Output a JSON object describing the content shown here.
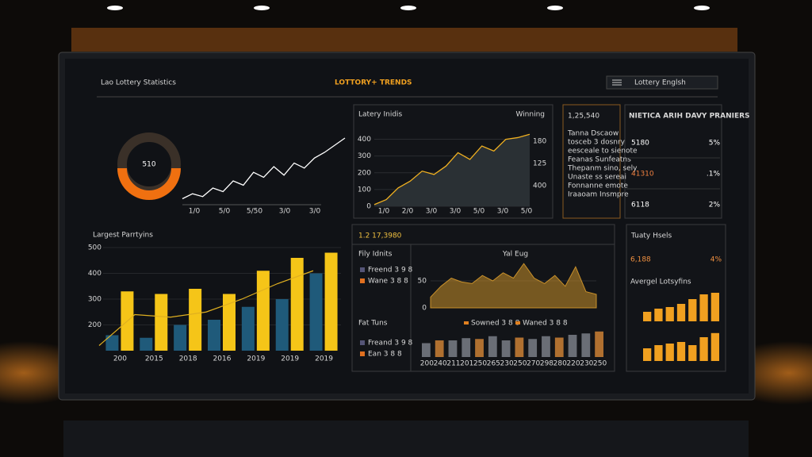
{
  "header": {
    "title": "Lao Lottery Statistics",
    "center_title": "LOTTORY+ TRENDS",
    "search": "Lottery Englsh"
  },
  "gauge": {
    "value": "510"
  },
  "sparkline": {
    "ylim": [
      0,
      100
    ],
    "values": [
      5,
      12,
      8,
      20,
      15,
      30,
      24,
      42,
      35,
      50,
      38,
      55,
      48,
      62,
      70,
      80,
      90
    ],
    "x_labels": [
      "1/0",
      "5/0",
      "5/50",
      "3/0",
      "3/0"
    ]
  },
  "trends": {
    "title": "Latery Inidis",
    "right_label": "Winning",
    "ylim": [
      0,
      450
    ],
    "yticks": [
      0,
      100,
      200,
      300,
      400
    ],
    "values": [
      10,
      40,
      110,
      150,
      210,
      190,
      240,
      320,
      280,
      360,
      330,
      400,
      410,
      430
    ],
    "x_labels": [
      "1/0",
      "2/0",
      "3/0",
      "3/0",
      "5/0",
      "3/0",
      "5/0"
    ],
    "y2_labels": [
      "180",
      "125",
      "400"
    ]
  },
  "stats_card": {
    "value": "1,25,540",
    "lines": [
      "Tanna Dscaow",
      "tosceb 3 dosnry",
      "eesceale to sienote",
      "Feanas Sunfeatns",
      "Thepanm sino, sely",
      "Unaste ss sereai",
      "Fonnanne emote",
      "Iraaoam Insmpre"
    ]
  },
  "big_numbers": {
    "title": "NIETICA ARIH DAVY PRANIERS",
    "rows": [
      [
        "5180",
        "5%"
      ],
      [
        "41310",
        ".1%"
      ],
      [
        "6118",
        "2%"
      ]
    ]
  },
  "largest": {
    "title": "Largest Parrtyins",
    "ylim": [
      100,
      500
    ],
    "yticks": [
      200,
      300,
      400,
      500
    ],
    "categories": [
      "200",
      "2015",
      "2018",
      "2016",
      "2019",
      "2019",
      "2019"
    ],
    "series": [
      {
        "color": "#1f5a7a",
        "values": [
          160,
          150,
          200,
          220,
          270,
          300,
          400
        ]
      },
      {
        "color": "#f5c518",
        "values": [
          330,
          320,
          340,
          320,
          410,
          460,
          480
        ]
      }
    ],
    "line": {
      "color": "#e0b020",
      "values": [
        120,
        240,
        230,
        250,
        300,
        360,
        410
      ]
    }
  },
  "middle": {
    "header": "1.2 17,3980",
    "legend_a": {
      "title": "Fily Idnits",
      "items": [
        "Freend 3 9 8",
        "Wane 3 8 8"
      ]
    },
    "legend_b": {
      "title": "Fat Tuns",
      "items": [
        "Freand 3 9 8",
        "Ean 3 8 8"
      ]
    },
    "area": {
      "title": "Yal Eug",
      "ylim": [
        0,
        100
      ],
      "yticks": [
        0,
        50
      ],
      "color": "#c8902a",
      "values": [
        20,
        40,
        55,
        48,
        45,
        60,
        50,
        65,
        55,
        82,
        55,
        45,
        60,
        40,
        76,
        30,
        25
      ],
      "legend": [
        "Sowned 3 8 8",
        "Waned 3 8 8"
      ]
    },
    "bars": {
      "ylim": [
        0,
        100
      ],
      "values": [
        50,
        60,
        60,
        68,
        65,
        75,
        60,
        70,
        65,
        75,
        70,
        80,
        85,
        92
      ],
      "x_labels": [
        "200",
        "240",
        "211",
        "201",
        "250",
        "265",
        "230",
        "250",
        "270",
        "298",
        "280",
        "220",
        "230",
        "250"
      ]
    }
  },
  "right": {
    "title": "Tuaty Hsels",
    "value": "6,188",
    "percent": "4%",
    "subtitle": "Avergel Lotsyfins",
    "ylim": [
      0,
      100
    ],
    "bars_a": [
      30,
      40,
      45,
      55,
      70,
      85,
      90
    ],
    "bars_b": [
      40,
      50,
      55,
      60,
      50,
      75,
      88
    ],
    "color": "#f0a020"
  }
}
